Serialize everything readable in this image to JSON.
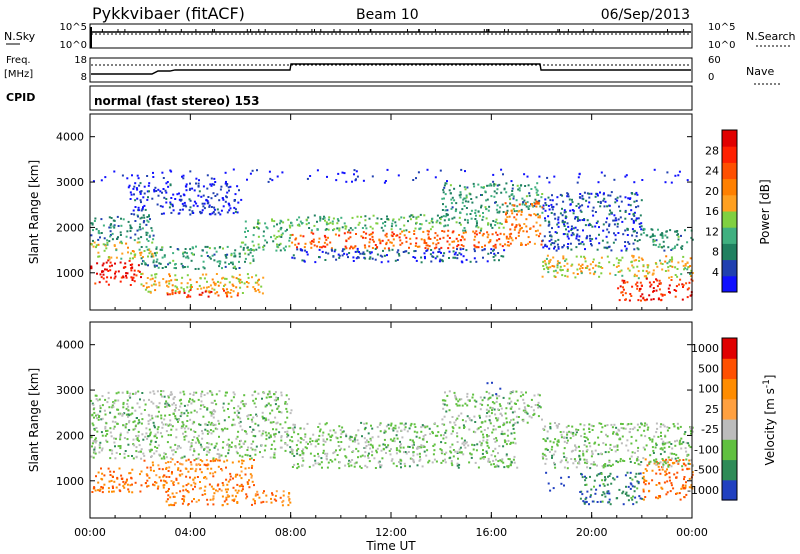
{
  "header": {
    "title": "Pykkvibaer (fitACF)",
    "beam": "Beam 10",
    "date": "06/Sep/2013"
  },
  "nsky_panel": {
    "left_label": "N.Sky",
    "right_label": "N.Search",
    "left_ticks": [
      "10^5",
      "10^0"
    ],
    "right_ticks": [
      "10^5",
      "10^0"
    ]
  },
  "freq_panel": {
    "left_label_line1": "Freq.",
    "left_label_line2": "[MHz]",
    "right_label": "Nave",
    "left_ticks": [
      "18",
      "8"
    ],
    "right_ticks": [
      "60",
      "0"
    ]
  },
  "cpid_panel": {
    "label": "CPID",
    "text": "normal (fast stereo) 153"
  },
  "x_axis": {
    "label": "Time UT",
    "ticks": [
      "00:00",
      "04:00",
      "08:00",
      "12:00",
      "16:00",
      "20:00",
      "00:00"
    ]
  },
  "chart_data": [
    {
      "type": "heatmap",
      "title": "",
      "xlabel": "",
      "ylabel": "Slant Range [km]",
      "xlim": [
        0,
        24
      ],
      "ylim": [
        180,
        4500
      ],
      "y_ticks": [
        1000,
        2000,
        3000,
        4000
      ],
      "colorbar": {
        "label": "Power [dB]",
        "ticks": [
          "4",
          "8",
          "12",
          "16",
          "20",
          "24",
          "28"
        ],
        "colors": [
          "#1010ff",
          "#2040b0",
          "#208060",
          "#40b080",
          "#80d040",
          "#ffa020",
          "#ff8000",
          "#ff5000",
          "#ff2000",
          "#e00000"
        ]
      },
      "bands": [
        {
          "t": [
            0.0,
            2.0
          ],
          "r": [
            750,
            1300
          ],
          "level": 0.9
        },
        {
          "t": [
            0.0,
            2.5
          ],
          "r": [
            1300,
            1700
          ],
          "level": 0.5
        },
        {
          "t": [
            0.0,
            2.5
          ],
          "r": [
            1700,
            2300
          ],
          "level": 0.25
        },
        {
          "t": [
            2.0,
            7.0
          ],
          "r": [
            550,
            1000
          ],
          "level": 0.55
        },
        {
          "t": [
            3.0,
            6.0
          ],
          "r": [
            480,
            650
          ],
          "level": 0.8
        },
        {
          "t": [
            2.0,
            6.5
          ],
          "r": [
            1100,
            1600
          ],
          "level": 0.3
        },
        {
          "t": [
            1.5,
            6.0
          ],
          "r": [
            2300,
            3000
          ],
          "level": 0.1
        },
        {
          "t": [
            6.0,
            8.0
          ],
          "r": [
            1500,
            2200
          ],
          "level": 0.35
        },
        {
          "t": [
            8.0,
            16.5
          ],
          "r": [
            1550,
            1950
          ],
          "level": 0.75
        },
        {
          "t": [
            8.0,
            16.5
          ],
          "r": [
            1950,
            2300
          ],
          "level": 0.35
        },
        {
          "t": [
            8.0,
            16.5
          ],
          "r": [
            1250,
            1550
          ],
          "level": 0.15
        },
        {
          "t": [
            14.0,
            18.0
          ],
          "r": [
            2300,
            3000
          ],
          "level": 0.3
        },
        {
          "t": [
            16.5,
            18.0
          ],
          "r": [
            1600,
            2600
          ],
          "level": 0.65
        },
        {
          "t": [
            18.0,
            24.0
          ],
          "r": [
            900,
            1400
          ],
          "level": 0.5
        },
        {
          "t": [
            21.0,
            24.0
          ],
          "r": [
            400,
            900
          ],
          "level": 0.85
        },
        {
          "t": [
            18.0,
            22.0
          ],
          "r": [
            1500,
            2800
          ],
          "level": 0.15
        },
        {
          "t": [
            22.0,
            24.0
          ],
          "r": [
            1500,
            2000
          ],
          "level": 0.3
        },
        {
          "t": [
            0.0,
            24.0
          ],
          "r": [
            3000,
            3300
          ],
          "level": 0.05
        }
      ]
    },
    {
      "type": "heatmap",
      "title": "",
      "xlabel": "Time UT",
      "ylabel": "Slant Range [km]",
      "xlim": [
        0,
        24
      ],
      "ylim": [
        180,
        4500
      ],
      "y_ticks": [
        1000,
        2000,
        3000,
        4000
      ],
      "colorbar": {
        "label": "Velocity [m s^-1]",
        "ticks": [
          "1000",
          "500",
          "100",
          "25",
          "-25",
          "-100",
          "-500",
          "-1000"
        ],
        "colors": [
          "#2040c0",
          "#2e8b57",
          "#60c040",
          "#bcbcbc",
          "#ffa040",
          "#ff8c00",
          "#ff5000",
          "#e00000"
        ]
      },
      "bands": [
        {
          "t": [
            0.0,
            2.0
          ],
          "r": [
            750,
            1300
          ],
          "level": 0.75
        },
        {
          "t": [
            2.0,
            6.5
          ],
          "r": [
            800,
            1500
          ],
          "level": 0.7
        },
        {
          "t": [
            3.0,
            8.0
          ],
          "r": [
            480,
            800
          ],
          "level": 0.7
        },
        {
          "t": [
            0.0,
            8.0
          ],
          "r": [
            1500,
            3000
          ],
          "level": 0.35
        },
        {
          "t": [
            8.0,
            17.0
          ],
          "r": [
            1300,
            2300
          ],
          "level": 0.35
        },
        {
          "t": [
            14.0,
            18.0
          ],
          "r": [
            2300,
            3000
          ],
          "level": 0.35
        },
        {
          "t": [
            15.5,
            16.5
          ],
          "r": [
            2900,
            3200
          ],
          "level": 0.0
        },
        {
          "t": [
            18.0,
            19.5
          ],
          "r": [
            800,
            1200
          ],
          "level": 0.0
        },
        {
          "t": [
            19.5,
            22.0
          ],
          "r": [
            500,
            1200
          ],
          "level": 0.15
        },
        {
          "t": [
            22.0,
            24.0
          ],
          "r": [
            600,
            1500
          ],
          "level": 0.75
        },
        {
          "t": [
            18.0,
            24.0
          ],
          "r": [
            1300,
            2300
          ],
          "level": 0.35
        }
      ]
    }
  ]
}
